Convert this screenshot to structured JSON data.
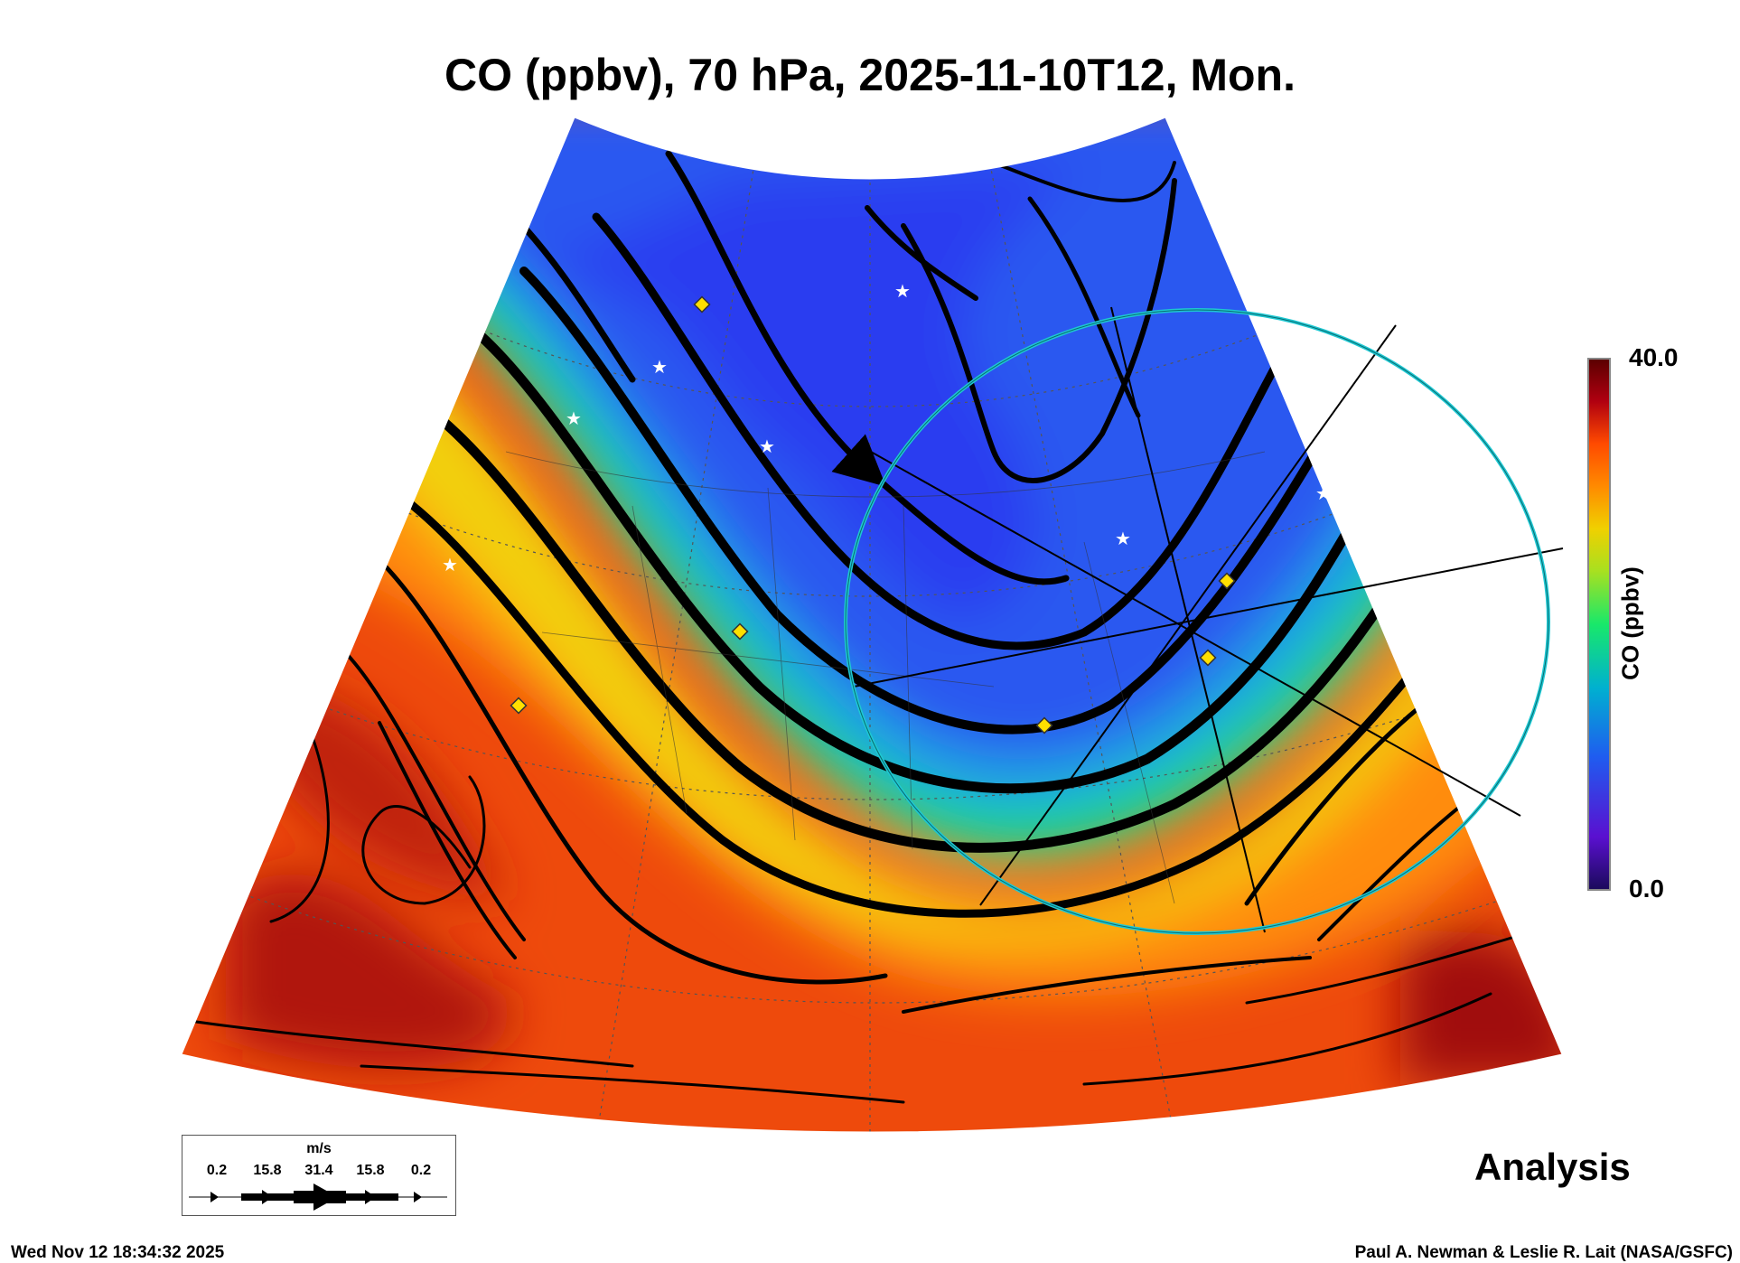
{
  "chart_data": {
    "type": "heatmap",
    "title": "CO (ppbv), 70 hPa, 2025-11-10T12, Mon.",
    "variable": "CO",
    "units": "ppbv",
    "pressure_level": "70 hPa",
    "valid_time": "2025-11-10T12",
    "colorbar": {
      "label": "CO (ppbv)",
      "min": 0.0,
      "max": 40.0,
      "min_label": "0.0",
      "max_label": "40.0"
    },
    "overlay": "wind streamlines",
    "product": "Analysis",
    "wind_legend": {
      "unit": "m/s",
      "ticks": [
        "0.2",
        "15.8",
        "31.4",
        "15.8",
        "0.2"
      ]
    },
    "colors": {
      "low": "#1a0a5a",
      "mid_low": "#1f5cf0",
      "mid": "#18e86a",
      "mid_high": "#f0d000",
      "high": "#ff5a00",
      "max": "#5a0000",
      "circle": "#1ec8d2"
    }
  },
  "footer": {
    "timestamp": "Wed Nov 12 18:34:32 2025",
    "credit": "Paul A. Newman & Leslie R. Lait (NASA/GSFC)"
  }
}
